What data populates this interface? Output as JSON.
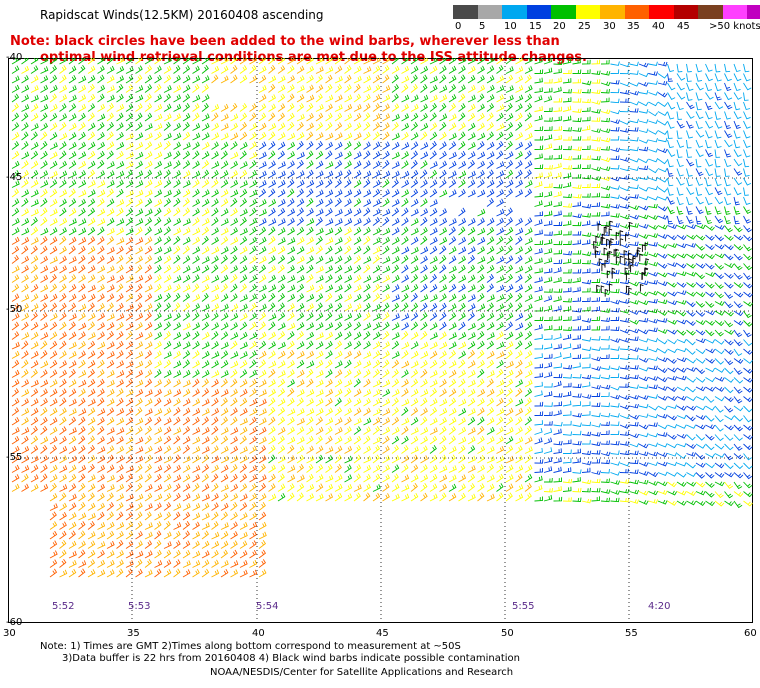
{
  "title": "Rapidscat Winds(12.5KM) 20160408 ascending",
  "note_line1": "Note: black circles have been added to the wind barbs, wherever less than",
  "note_line2": "optimal wind retrieval conditions are met due to the ISS attitude changes.",
  "colorbar": {
    "colors": [
      "#4a4a4a",
      "#a8a8a8",
      "#00a8f0",
      "#0040e0",
      "#00c000",
      "#ffff00",
      "#ffb400",
      "#ff6000",
      "#ff0000",
      "#b40000",
      "#7a4020",
      "#ff40ff",
      "#c000c0"
    ],
    "labels": [
      "0",
      "5",
      "10",
      "15",
      "20",
      "25",
      "30",
      "35",
      "40",
      "45",
      ">50 knots"
    ]
  },
  "lat_labels": [
    "-40",
    "-45",
    "-50",
    "-55",
    "-60"
  ],
  "lon_labels": [
    "30",
    "35",
    "40",
    "45",
    "50",
    "55",
    "60"
  ],
  "time_labels": [
    "5:52",
    "5:53",
    "5:54",
    "5:55",
    "4:20"
  ],
  "footer": {
    "line1": "Note: 1) Times are GMT 2)Times along bottom correspond to measurement at ~50S",
    "line2": "3)Data buffer is 22 hrs from 20160408 4) Black wind barbs indicate possible contamination",
    "line3": "NOAA/NESDIS/Center for Satellite Applications and Research"
  }
}
